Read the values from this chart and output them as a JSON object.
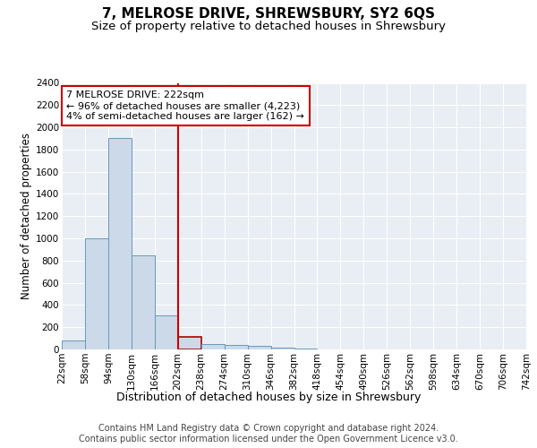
{
  "title": "7, MELROSE DRIVE, SHREWSBURY, SY2 6QS",
  "subtitle": "Size of property relative to detached houses in Shrewsbury",
  "xlabel": "Distribution of detached houses by size in Shrewsbury",
  "ylabel": "Number of detached properties",
  "bin_labels": [
    "22sqm",
    "58sqm",
    "94sqm",
    "130sqm",
    "166sqm",
    "202sqm",
    "238sqm",
    "274sqm",
    "310sqm",
    "346sqm",
    "382sqm",
    "418sqm",
    "454sqm",
    "490sqm",
    "526sqm",
    "562sqm",
    "598sqm",
    "634sqm",
    "670sqm",
    "706sqm",
    "742sqm"
  ],
  "bar_values": [
    80,
    1000,
    1900,
    850,
    310,
    110,
    50,
    40,
    30,
    20,
    10,
    0,
    0,
    0,
    0,
    0,
    0,
    0,
    0,
    0
  ],
  "highlight_bin": 5,
  "property_label": "7 MELROSE DRIVE: 222sqm",
  "annotation_line1": "← 96% of detached houses are smaller (4,223)",
  "annotation_line2": "4% of semi-detached houses are larger (162) →",
  "vline_x": 5,
  "bar_color": "#ccd9e8",
  "bar_edge_color": "#6699bb",
  "highlight_bar_edge_color": "#aa0000",
  "vline_color": "#cc0000",
  "annotation_box_edge": "#cc0000",
  "ylim": [
    0,
    2400
  ],
  "yticks": [
    0,
    200,
    400,
    600,
    800,
    1000,
    1200,
    1400,
    1600,
    1800,
    2000,
    2200,
    2400
  ],
  "footer1": "Contains HM Land Registry data © Crown copyright and database right 2024.",
  "footer2": "Contains public sector information licensed under the Open Government Licence v3.0.",
  "plot_bg": "#e8eef4",
  "grid_color": "#ffffff",
  "title_fontsize": 11,
  "subtitle_fontsize": 9.5,
  "ylabel_fontsize": 8.5,
  "xlabel_fontsize": 9,
  "tick_fontsize": 7.5,
  "annotation_fontsize": 8,
  "footer_fontsize": 7
}
